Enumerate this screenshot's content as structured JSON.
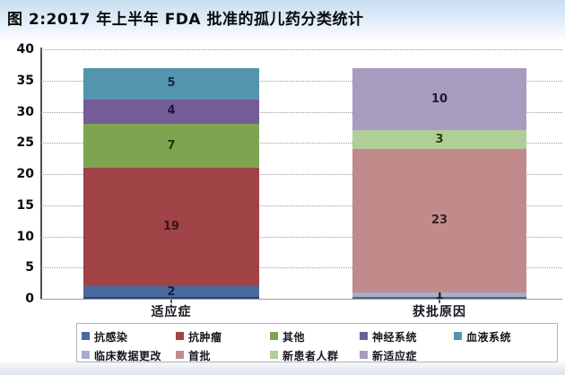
{
  "header": {
    "title": "图 2:2017 年上半年 FDA 批准的孤儿药分类统计"
  },
  "chart_data": {
    "type": "bar",
    "stacked": true,
    "title": "图 2:2017 年上半年 FDA 批准的孤儿药分类统计",
    "xlabel": "",
    "ylabel": "",
    "ylim": [
      0,
      40
    ],
    "yticks": [
      0,
      5,
      10,
      15,
      20,
      25,
      30,
      35,
      40
    ],
    "grid": "horizontal-dotted",
    "categories": [
      "适应症",
      "获批原因"
    ],
    "bars": [
      {
        "category": "适应症",
        "total": 37,
        "segments": [
          {
            "label": "抗感染",
            "value": 2,
            "color": "#4a6a9e",
            "label_color": "#14213f"
          },
          {
            "label": "抗肿瘤",
            "value": 19,
            "color": "#a04347",
            "label_color": "#391418"
          },
          {
            "label": "其他",
            "value": 7,
            "color": "#7ea451",
            "label_color": "#22350d"
          },
          {
            "label": "神经系统",
            "value": 4,
            "color": "#745c99",
            "label_color": "#221539"
          },
          {
            "label": "血液系统",
            "value": 5,
            "color": "#5295ac",
            "label_color": "#0e2e3c"
          }
        ]
      },
      {
        "category": "获批原因",
        "total": 37,
        "segments": [
          {
            "label": "临床数据更改",
            "value": 1,
            "color": "#a8aec9",
            "label_color": "#171c33"
          },
          {
            "label": "首批",
            "value": 23,
            "color": "#c28b8b",
            "label_color": "#3b1f1f"
          },
          {
            "label": "新患者人群",
            "value": 3,
            "color": "#b0ce98",
            "label_color": "#2a3a12"
          },
          {
            "label": "新适应症",
            "value": 10,
            "color": "#a89bc0",
            "label_color": "#231539"
          }
        ]
      }
    ],
    "legend": {
      "position": "bottom-boxed-two-rows",
      "rows": [
        [
          "抗感染",
          "抗肿瘤",
          "其他",
          "神经系统",
          "血液系统"
        ],
        [
          "临床数据更改",
          "首批",
          "新患者人群",
          "新适应症"
        ]
      ]
    }
  }
}
